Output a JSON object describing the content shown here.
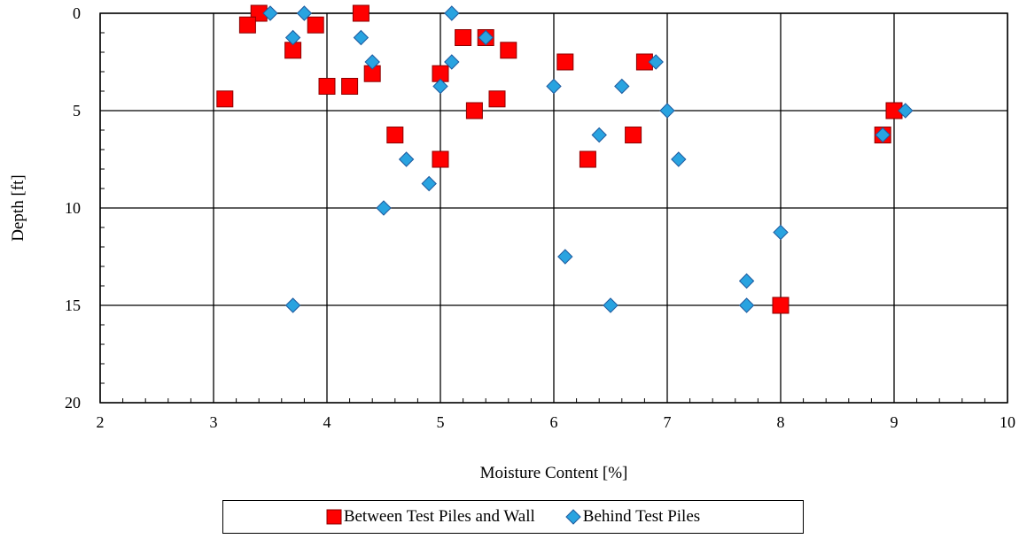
{
  "chart_data": {
    "type": "scatter",
    "xlabel": "Moisture Content [%]",
    "ylabel": "Depth [ft]",
    "xlim": [
      2,
      10
    ],
    "ylim": [
      0,
      20
    ],
    "y_inverted": true,
    "x_ticks": [
      "2",
      "3",
      "4",
      "5",
      "6",
      "7",
      "8",
      "9",
      "10"
    ],
    "y_ticks": [
      "0",
      "5",
      "10",
      "15",
      "20"
    ],
    "x_tick_values": [
      2,
      3,
      4,
      5,
      6,
      7,
      8,
      9,
      10
    ],
    "y_tick_values": [
      0,
      5,
      10,
      15,
      20
    ],
    "grid": true,
    "legend_position": "bottom",
    "series": [
      {
        "name": "Between Test Piles and Wall",
        "marker": "square",
        "color": "#ff0000",
        "edge_color": "#8b0000",
        "points": [
          [
            3.4,
            0.0
          ],
          [
            4.3,
            0.0
          ],
          [
            3.3,
            0.6
          ],
          [
            3.9,
            0.6
          ],
          [
            3.7,
            1.9
          ],
          [
            5.2,
            1.25
          ],
          [
            5.4,
            1.25
          ],
          [
            5.6,
            1.9
          ],
          [
            4.4,
            3.1
          ],
          [
            5.0,
            3.1
          ],
          [
            6.1,
            2.5
          ],
          [
            6.8,
            2.5
          ],
          [
            3.1,
            4.4
          ],
          [
            4.0,
            3.75
          ],
          [
            4.2,
            3.75
          ],
          [
            5.3,
            5.0
          ],
          [
            5.5,
            4.4
          ],
          [
            9.0,
            5.0
          ],
          [
            4.6,
            6.25
          ],
          [
            6.7,
            6.25
          ],
          [
            8.9,
            6.25
          ],
          [
            5.0,
            7.5
          ],
          [
            6.3,
            7.5
          ],
          [
            8.0,
            15.0
          ]
        ]
      },
      {
        "name": "Behind Test Piles",
        "marker": "diamond",
        "color": "#29a3e0",
        "edge_color": "#1f5a9e",
        "points": [
          [
            3.5,
            0.0
          ],
          [
            3.8,
            0.0
          ],
          [
            5.1,
            0.0
          ],
          [
            3.7,
            1.25
          ],
          [
            4.3,
            1.25
          ],
          [
            5.4,
            1.25
          ],
          [
            4.4,
            2.5
          ],
          [
            5.1,
            2.5
          ],
          [
            6.9,
            2.5
          ],
          [
            5.0,
            3.75
          ],
          [
            6.0,
            3.75
          ],
          [
            6.6,
            3.75
          ],
          [
            7.0,
            5.0
          ],
          [
            9.1,
            5.0
          ],
          [
            6.4,
            6.25
          ],
          [
            8.9,
            6.25
          ],
          [
            4.7,
            7.5
          ],
          [
            7.1,
            7.5
          ],
          [
            4.9,
            8.75
          ],
          [
            4.5,
            10.0
          ],
          [
            8.0,
            11.25
          ],
          [
            6.1,
            12.5
          ],
          [
            7.7,
            13.75
          ],
          [
            3.7,
            15.0
          ],
          [
            6.5,
            15.0
          ],
          [
            7.7,
            15.0
          ]
        ]
      }
    ]
  }
}
